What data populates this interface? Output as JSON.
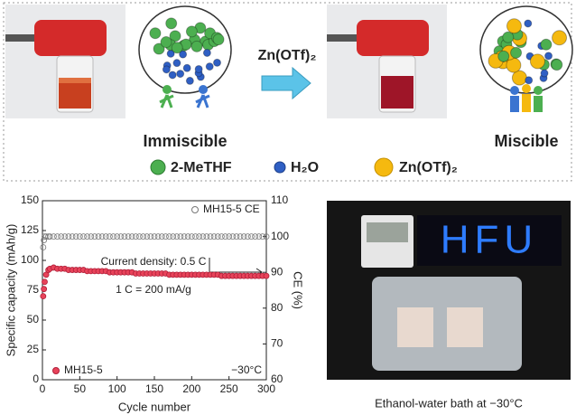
{
  "diagram": {
    "reagent": "Zn(OTf)₂",
    "left_label": "Immiscible",
    "right_label": "Miscible",
    "legend": [
      "2-MeTHF",
      "H₂O",
      "Zn(OTf)₂"
    ]
  },
  "chart_data": {
    "type": "scatter",
    "xlabel": "Cycle number",
    "ylabel": "Specific capacity (mAh/g)",
    "y2label": "CE (%)",
    "xlim": [
      0,
      300
    ],
    "xticks": [
      0,
      50,
      100,
      150,
      200,
      250,
      300
    ],
    "ylim": [
      0,
      150
    ],
    "yticks": [
      0,
      25,
      50,
      75,
      100,
      125,
      150
    ],
    "y2lim": [
      60,
      110
    ],
    "y2ticks": [
      60,
      70,
      80,
      90,
      100,
      110
    ],
    "x": [
      1,
      2,
      3,
      5,
      8,
      10,
      15,
      20,
      25,
      30,
      35,
      40,
      45,
      50,
      55,
      60,
      65,
      70,
      75,
      80,
      85,
      90,
      95,
      100,
      105,
      110,
      115,
      120,
      125,
      130,
      135,
      140,
      145,
      150,
      155,
      160,
      165,
      170,
      175,
      180,
      185,
      190,
      195,
      200,
      205,
      210,
      215,
      220,
      225,
      230,
      235,
      240,
      245,
      250,
      255,
      260,
      265,
      270,
      275,
      280,
      285,
      290,
      295,
      300
    ],
    "series": [
      {
        "name": "MH15-5",
        "color": "#e8435a",
        "marker": "filled",
        "values": [
          70,
          76,
          82,
          88,
          92,
          93,
          94,
          93,
          93,
          93,
          92,
          92,
          92,
          92,
          92,
          91,
          91,
          91,
          91,
          91,
          91,
          90,
          90,
          90,
          90,
          90,
          90,
          90,
          89,
          89,
          89,
          89,
          89,
          89,
          89,
          89,
          89,
          88,
          88,
          88,
          88,
          88,
          88,
          88,
          88,
          88,
          88,
          88,
          88,
          88,
          88,
          87,
          87,
          87,
          87,
          87,
          87,
          87,
          87,
          87,
          87,
          87,
          87,
          87
        ]
      },
      {
        "name": "MH15-5 CE",
        "color": "#777777",
        "marker": "hollow",
        "axis": "y2",
        "values": [
          97,
          99,
          100,
          100,
          100,
          100,
          100,
          100,
          100,
          100,
          100,
          100,
          100,
          100,
          100,
          100,
          100,
          100,
          100,
          100,
          100,
          100,
          100,
          100,
          100,
          100,
          100,
          100,
          100,
          100,
          100,
          100,
          100,
          100,
          100,
          100,
          100,
          100,
          100,
          100,
          100,
          100,
          100,
          100,
          100,
          100,
          100,
          100,
          100,
          100,
          100,
          100,
          100,
          100,
          100,
          100,
          100,
          100,
          100,
          100,
          100,
          100,
          100,
          100
        ]
      }
    ],
    "annotations": [
      "Current density: 0.5 C",
      "1 C = 200 mA/g",
      "−30°C"
    ]
  },
  "photo": {
    "caption": "Ethanol-water bath at −30°C",
    "sign": "HFU"
  }
}
